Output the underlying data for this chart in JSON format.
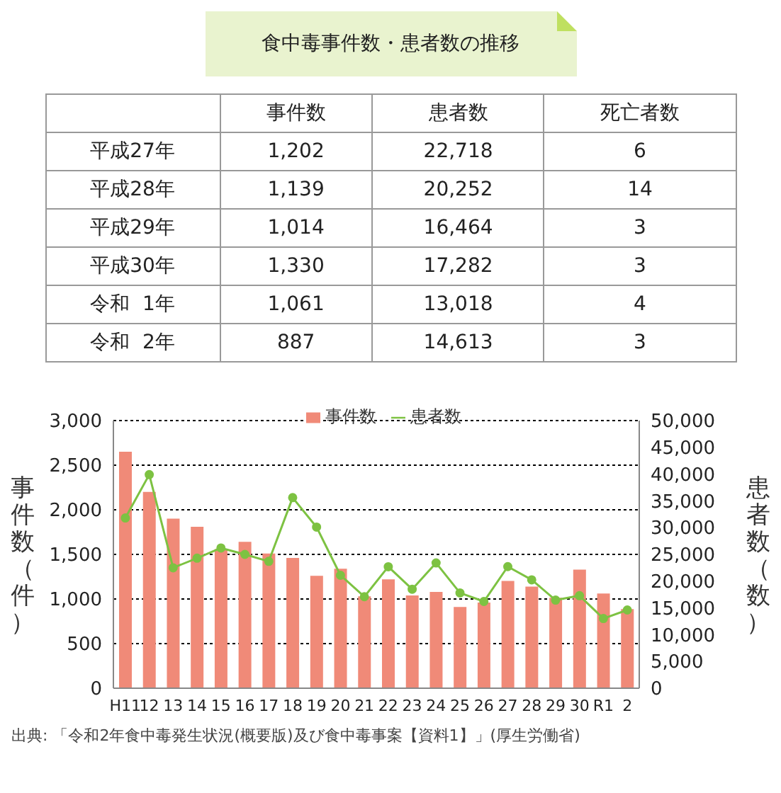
{
  "chart_data": [
    {
      "type": "other",
      "title": "食中毒事件数・患者数の推移",
      "categories": [
        "平成27年",
        "平成28年",
        "平成29年",
        "平成30年",
        "令和  1年",
        "令和  2年"
      ],
      "series": [
        {
          "name": "事件数",
          "values": [
            1202,
            1139,
            1014,
            1330,
            1061,
            887
          ],
          "value_labels": [
            "1,202",
            "1,139",
            "1,014",
            "1,330",
            "1,061",
            "887"
          ]
        },
        {
          "name": "患者数",
          "values": [
            22718,
            20252,
            16464,
            17282,
            13018,
            14613
          ],
          "value_labels": [
            "22,718",
            "20,252",
            "16,464",
            "17,282",
            "13,018",
            "14,613"
          ]
        },
        {
          "name": "死亡者数",
          "values": [
            6,
            14,
            3,
            3,
            4,
            3
          ],
          "value_labels": [
            "6",
            "14",
            "3",
            "3",
            "4",
            "3"
          ]
        }
      ]
    },
    {
      "type": "bar",
      "categories": [
        "H11",
        "12",
        "13",
        "14",
        "15",
        "16",
        "17",
        "18",
        "19",
        "20",
        "21",
        "22",
        "23",
        "24",
        "25",
        "26",
        "27",
        "28",
        "29",
        "30",
        "R1",
        "2"
      ],
      "ylabel": "事件数（件）",
      "y2label": "患者数（数）",
      "ylim": [
        0,
        3000
      ],
      "yticks": [
        0,
        500,
        {
          "value": 1000,
          "label": "1,000"
        },
        {
          "value": 1500,
          "label": "1,500"
        },
        {
          "value": 2000,
          "label": "2,000"
        },
        {
          "value": 2500,
          "label": "2,500"
        },
        {
          "value": 3000,
          "label": "3,000"
        }
      ],
      "y2lim": [
        0,
        50000
      ],
      "y2ticks": [
        0,
        {
          "value": 5000,
          "label": "5,000"
        },
        {
          "value": 10000,
          "label": "10,000"
        },
        {
          "value": 15000,
          "label": "15,000"
        },
        {
          "value": 20000,
          "label": "20,000"
        },
        {
          "value": 25000,
          "label": "25,000"
        },
        {
          "value": 30000,
          "label": "30,000"
        },
        {
          "value": 35000,
          "label": "35,000"
        },
        {
          "value": 40000,
          "label": "40,000"
        },
        {
          "value": 45000,
          "label": "45,000"
        },
        {
          "value": 50000,
          "label": "50,000"
        }
      ],
      "grid": "y",
      "legend": "top",
      "series": [
        {
          "name": "事件数",
          "type": "bar",
          "color": "#f08a78",
          "values": [
            2650,
            2200,
            1900,
            1810,
            1560,
            1640,
            1510,
            1460,
            1260,
            1340,
            1030,
            1220,
            1040,
            1080,
            910,
            960,
            1202,
            1139,
            1014,
            1330,
            1061,
            887
          ]
        },
        {
          "name": "患者数",
          "type": "line",
          "axis": "y2",
          "color": "#7dc242",
          "marker": "circle",
          "values": [
            31800,
            39900,
            22500,
            24300,
            26200,
            25000,
            23700,
            35600,
            30100,
            21100,
            17100,
            22700,
            18500,
            23400,
            17800,
            16200,
            22718,
            20252,
            16464,
            17282,
            13018,
            14613
          ]
        }
      ],
      "annotations": [
        "出典: 「令和2年食中毒発生状況(概要版)及び食中毒事案【資料1】」(厚生労働省)"
      ]
    }
  ]
}
